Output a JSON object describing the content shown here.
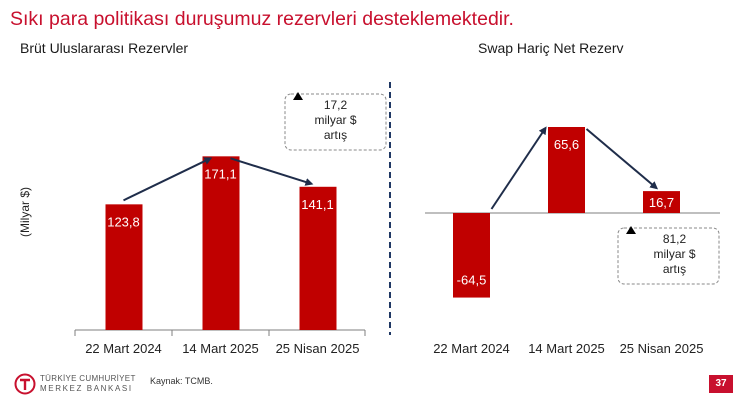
{
  "slide": {
    "title": "Sıkı para politikası duruşumuz rezervleri desteklemektedir.",
    "source": "Kaynak: TCMB.",
    "page_number": "37",
    "logo_line1": "TÜRKİYE CUMHURİYET",
    "logo_line2": "MERKEZ BANKASI"
  },
  "colors": {
    "accent": "#c8102e",
    "bar": "#c00000",
    "arrow": "#1f2d4a",
    "divider": "#1f3864"
  },
  "chart_data": [
    {
      "type": "bar",
      "title": "Brüt Uluslararası Rezervler",
      "ylabel": "(Milyar $)",
      "categories": [
        "22 Mart 2024",
        "14 Mart 2025",
        "25 Nisan 2025"
      ],
      "values": [
        123.8,
        171.1,
        141.1
      ],
      "value_labels": [
        "123,8",
        "171,1",
        "141,1"
      ],
      "ylim": [
        0,
        200
      ],
      "annotation": {
        "lines": [
          "17,2",
          "milyar $",
          "artış"
        ]
      }
    },
    {
      "type": "bar",
      "title": "Swap Hariç Net Rezerv",
      "categories": [
        "22 Mart 2024",
        "14 Mart 2025",
        "25 Nisan 2025"
      ],
      "values": [
        -64.5,
        65.6,
        16.7
      ],
      "value_labels": [
        "-64,5",
        "65,6",
        "16,7"
      ],
      "ylim": [
        -70,
        70
      ],
      "annotation": {
        "lines": [
          "81,2",
          "milyar $",
          "artış"
        ]
      }
    }
  ]
}
